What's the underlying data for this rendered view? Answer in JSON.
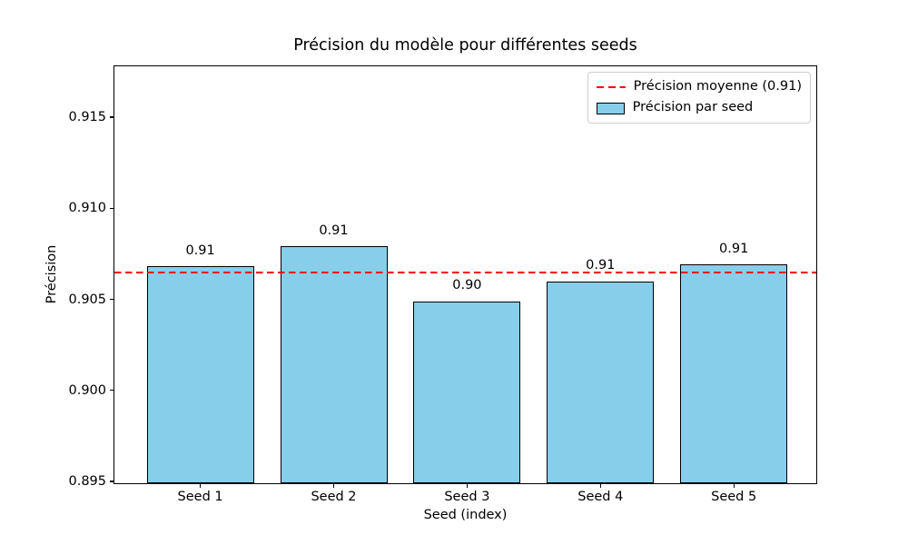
{
  "chart_data": {
    "type": "bar",
    "title": "Précision du modèle pour différentes seeds",
    "xlabel": "Seed (index)",
    "ylabel": "Précision",
    "categories": [
      "Seed 1",
      "Seed 2",
      "Seed 3",
      "Seed 4",
      "Seed 5"
    ],
    "values": [
      0.9067,
      0.9078,
      0.9048,
      0.9059,
      0.9068
    ],
    "bar_value_labels": [
      "0.91",
      "0.91",
      "0.90",
      "0.91",
      "0.91"
    ],
    "mean_line": {
      "value": 0.9064,
      "label": "Précision moyenne (0.91)",
      "style": "dashed"
    },
    "yticks": [
      0.895,
      0.9,
      0.905,
      0.91,
      0.915
    ],
    "ytick_labels": [
      "0.895",
      "0.900",
      "0.905",
      "0.910",
      "0.915"
    ],
    "ylim": [
      0.8948,
      0.9178
    ],
    "grid": false,
    "legend": {
      "position": "upper right",
      "entries": [
        {
          "type": "dashed-line",
          "label": "Précision moyenne (0.91)"
        },
        {
          "type": "patch",
          "label": "Précision par seed"
        }
      ]
    },
    "colors": {
      "bar_fill": "#87CEEB",
      "bar_edge": "#000000",
      "mean_line": "#FF0000",
      "axis": "#000000",
      "text": "#000000"
    }
  }
}
